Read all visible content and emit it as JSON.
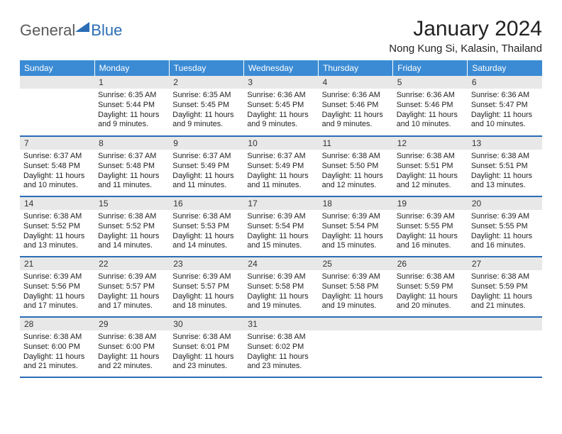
{
  "brand": {
    "text1": "General",
    "text2": "Blue"
  },
  "title": "January 2024",
  "location": "Nong Kung Si, Kalasin, Thailand",
  "colors": {
    "header_bg": "#3b8bd4",
    "header_text": "#ffffff",
    "rule": "#2a6db5",
    "daynum_bg": "#e8e8e8",
    "body_text": "#222222",
    "logo_gray": "#5a5a5a",
    "logo_blue": "#2a6db5",
    "page_bg": "#ffffff"
  },
  "weekdays": [
    "Sunday",
    "Monday",
    "Tuesday",
    "Wednesday",
    "Thursday",
    "Friday",
    "Saturday"
  ],
  "weeks": [
    [
      null,
      {
        "n": "1",
        "sunrise": "6:35 AM",
        "sunset": "5:44 PM",
        "daylight": "11 hours and 9 minutes."
      },
      {
        "n": "2",
        "sunrise": "6:35 AM",
        "sunset": "5:45 PM",
        "daylight": "11 hours and 9 minutes."
      },
      {
        "n": "3",
        "sunrise": "6:36 AM",
        "sunset": "5:45 PM",
        "daylight": "11 hours and 9 minutes."
      },
      {
        "n": "4",
        "sunrise": "6:36 AM",
        "sunset": "5:46 PM",
        "daylight": "11 hours and 9 minutes."
      },
      {
        "n": "5",
        "sunrise": "6:36 AM",
        "sunset": "5:46 PM",
        "daylight": "11 hours and 10 minutes."
      },
      {
        "n": "6",
        "sunrise": "6:36 AM",
        "sunset": "5:47 PM",
        "daylight": "11 hours and 10 minutes."
      }
    ],
    [
      {
        "n": "7",
        "sunrise": "6:37 AM",
        "sunset": "5:48 PM",
        "daylight": "11 hours and 10 minutes."
      },
      {
        "n": "8",
        "sunrise": "6:37 AM",
        "sunset": "5:48 PM",
        "daylight": "11 hours and 11 minutes."
      },
      {
        "n": "9",
        "sunrise": "6:37 AM",
        "sunset": "5:49 PM",
        "daylight": "11 hours and 11 minutes."
      },
      {
        "n": "10",
        "sunrise": "6:37 AM",
        "sunset": "5:49 PM",
        "daylight": "11 hours and 11 minutes."
      },
      {
        "n": "11",
        "sunrise": "6:38 AM",
        "sunset": "5:50 PM",
        "daylight": "11 hours and 12 minutes."
      },
      {
        "n": "12",
        "sunrise": "6:38 AM",
        "sunset": "5:51 PM",
        "daylight": "11 hours and 12 minutes."
      },
      {
        "n": "13",
        "sunrise": "6:38 AM",
        "sunset": "5:51 PM",
        "daylight": "11 hours and 13 minutes."
      }
    ],
    [
      {
        "n": "14",
        "sunrise": "6:38 AM",
        "sunset": "5:52 PM",
        "daylight": "11 hours and 13 minutes."
      },
      {
        "n": "15",
        "sunrise": "6:38 AM",
        "sunset": "5:52 PM",
        "daylight": "11 hours and 14 minutes."
      },
      {
        "n": "16",
        "sunrise": "6:38 AM",
        "sunset": "5:53 PM",
        "daylight": "11 hours and 14 minutes."
      },
      {
        "n": "17",
        "sunrise": "6:39 AM",
        "sunset": "5:54 PM",
        "daylight": "11 hours and 15 minutes."
      },
      {
        "n": "18",
        "sunrise": "6:39 AM",
        "sunset": "5:54 PM",
        "daylight": "11 hours and 15 minutes."
      },
      {
        "n": "19",
        "sunrise": "6:39 AM",
        "sunset": "5:55 PM",
        "daylight": "11 hours and 16 minutes."
      },
      {
        "n": "20",
        "sunrise": "6:39 AM",
        "sunset": "5:55 PM",
        "daylight": "11 hours and 16 minutes."
      }
    ],
    [
      {
        "n": "21",
        "sunrise": "6:39 AM",
        "sunset": "5:56 PM",
        "daylight": "11 hours and 17 minutes."
      },
      {
        "n": "22",
        "sunrise": "6:39 AM",
        "sunset": "5:57 PM",
        "daylight": "11 hours and 17 minutes."
      },
      {
        "n": "23",
        "sunrise": "6:39 AM",
        "sunset": "5:57 PM",
        "daylight": "11 hours and 18 minutes."
      },
      {
        "n": "24",
        "sunrise": "6:39 AM",
        "sunset": "5:58 PM",
        "daylight": "11 hours and 19 minutes."
      },
      {
        "n": "25",
        "sunrise": "6:39 AM",
        "sunset": "5:58 PM",
        "daylight": "11 hours and 19 minutes."
      },
      {
        "n": "26",
        "sunrise": "6:38 AM",
        "sunset": "5:59 PM",
        "daylight": "11 hours and 20 minutes."
      },
      {
        "n": "27",
        "sunrise": "6:38 AM",
        "sunset": "5:59 PM",
        "daylight": "11 hours and 21 minutes."
      }
    ],
    [
      {
        "n": "28",
        "sunrise": "6:38 AM",
        "sunset": "6:00 PM",
        "daylight": "11 hours and 21 minutes."
      },
      {
        "n": "29",
        "sunrise": "6:38 AM",
        "sunset": "6:00 PM",
        "daylight": "11 hours and 22 minutes."
      },
      {
        "n": "30",
        "sunrise": "6:38 AM",
        "sunset": "6:01 PM",
        "daylight": "11 hours and 23 minutes."
      },
      {
        "n": "31",
        "sunrise": "6:38 AM",
        "sunset": "6:02 PM",
        "daylight": "11 hours and 23 minutes."
      },
      null,
      null,
      null
    ]
  ],
  "labels": {
    "sunrise": "Sunrise:",
    "sunset": "Sunset:",
    "daylight": "Daylight:"
  }
}
